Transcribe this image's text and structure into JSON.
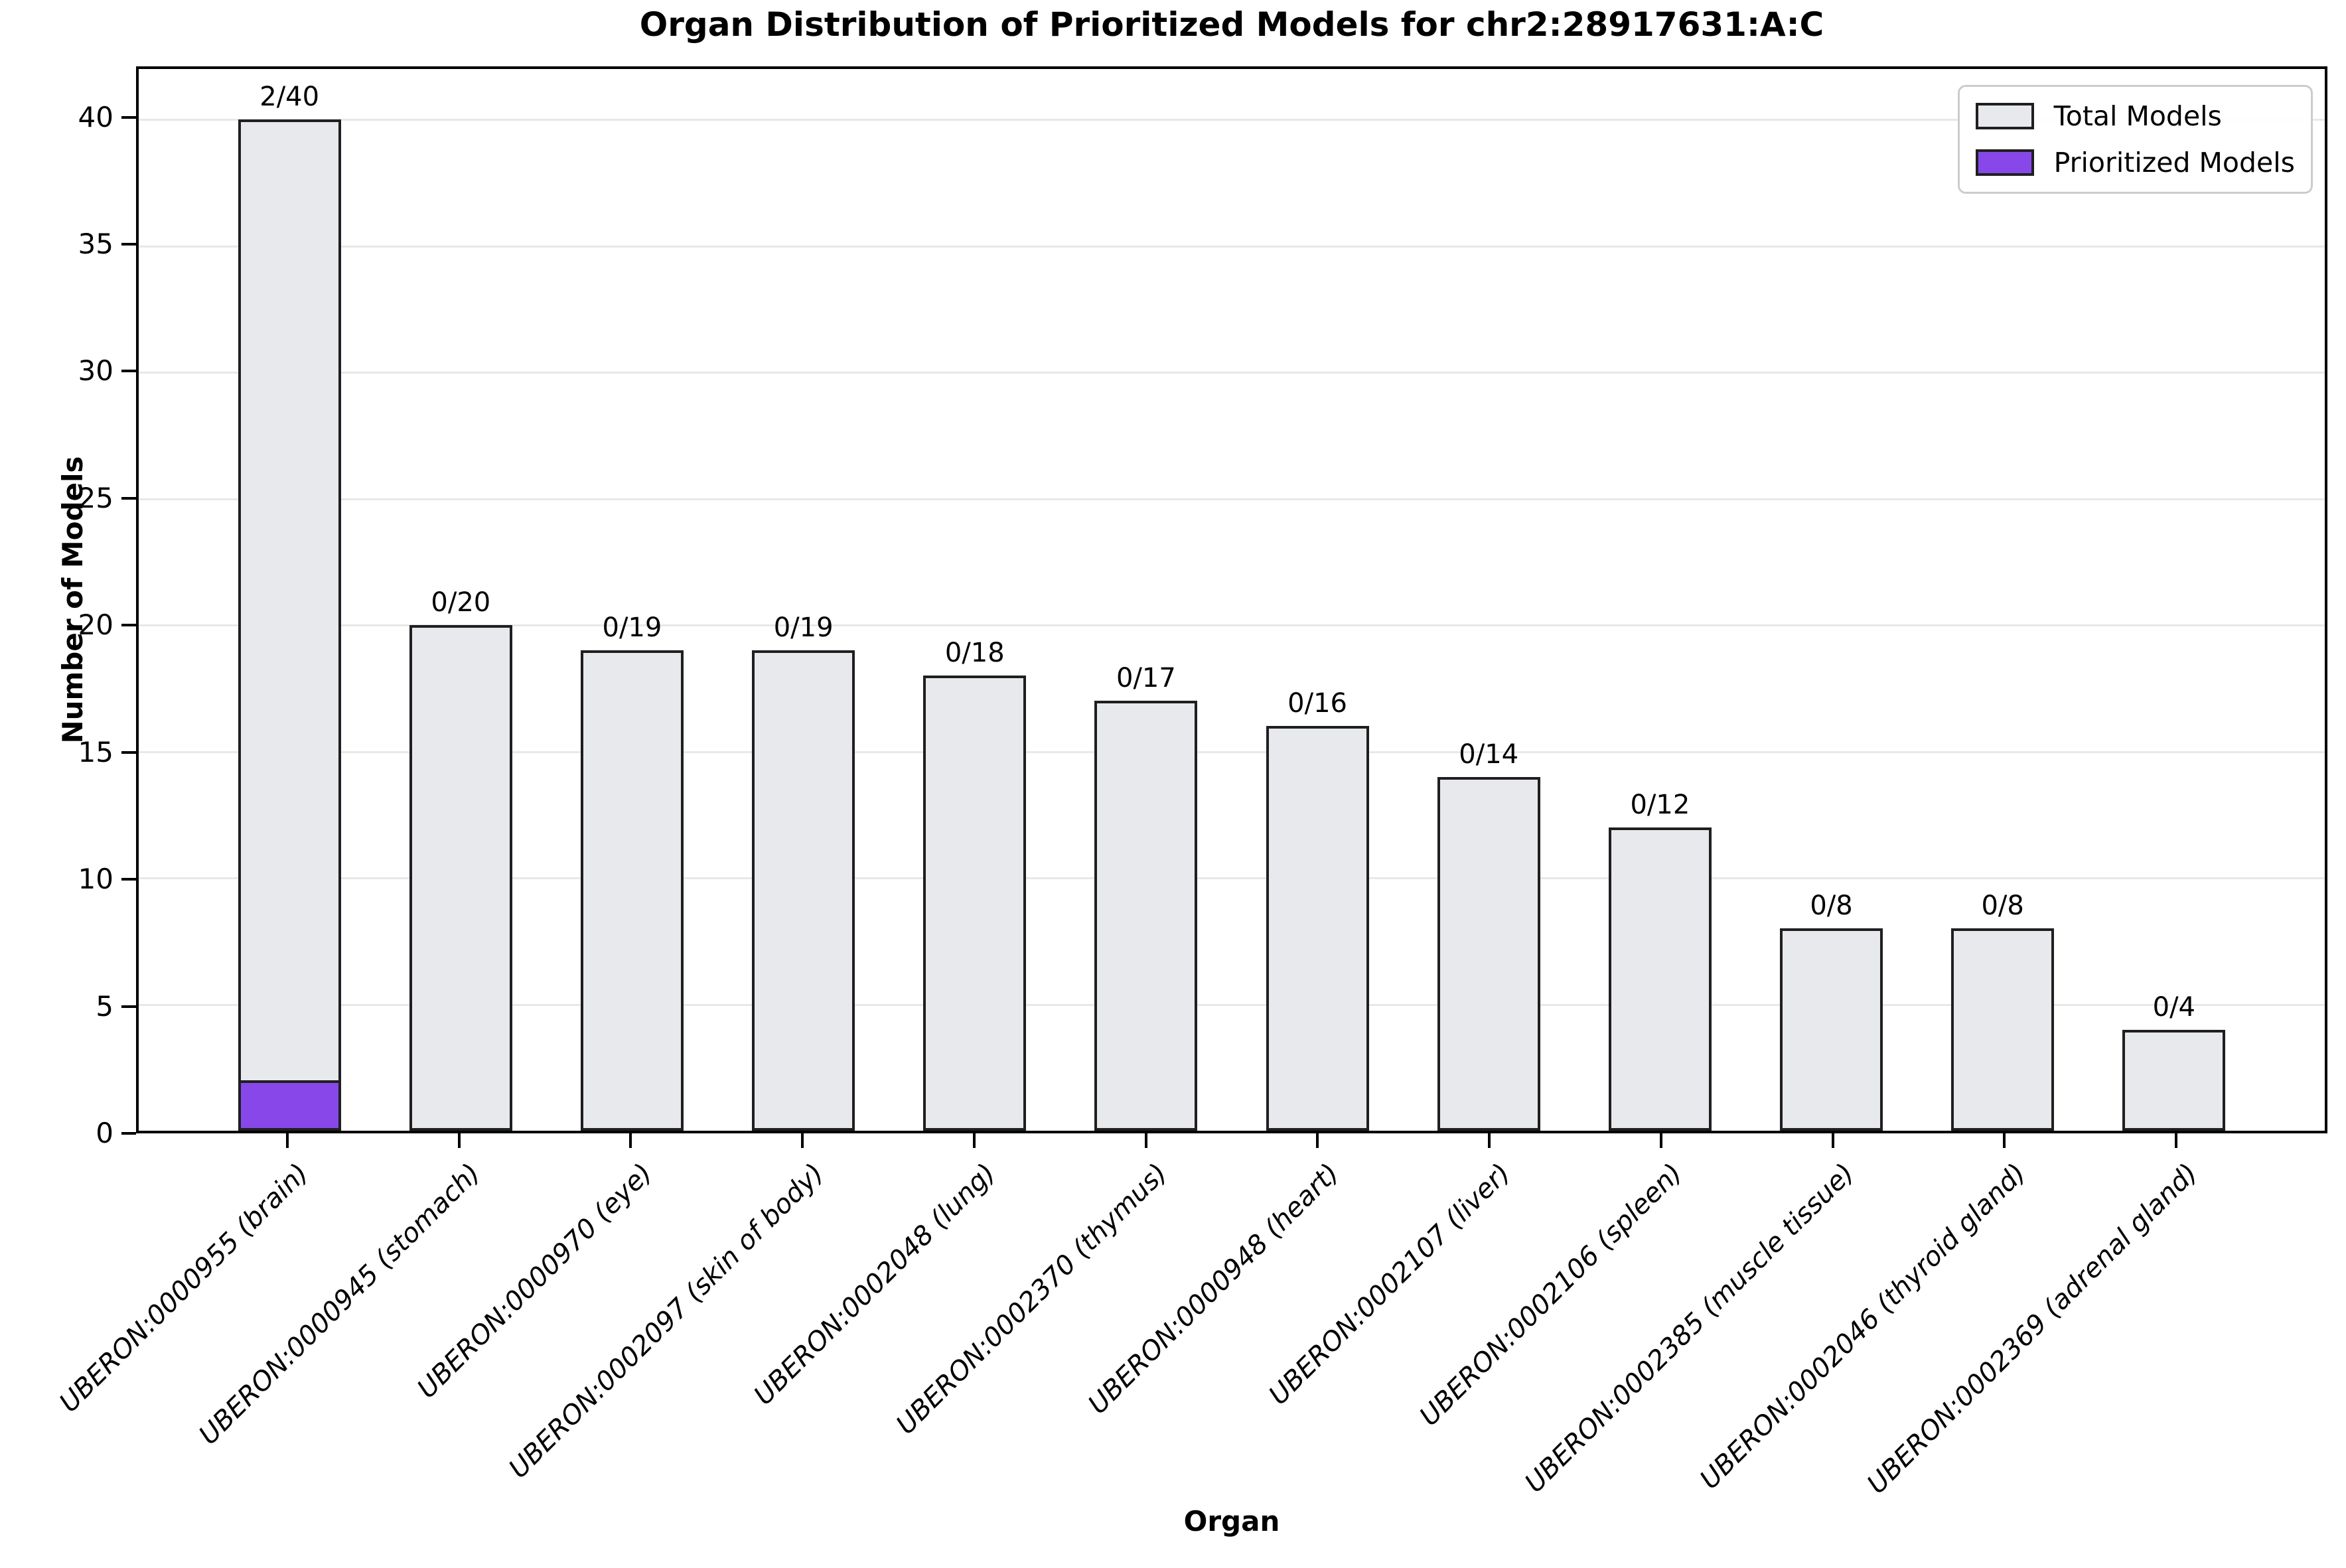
{
  "chart_data": {
    "type": "bar",
    "title": "Organ Distribution of Prioritized Models for chr2:28917631:A:C",
    "xlabel": "Organ",
    "ylabel": "Number of Models",
    "ylim": [
      0,
      42
    ],
    "yticks": [
      0,
      5,
      10,
      15,
      20,
      25,
      30,
      35,
      40
    ],
    "grid": "horizontal-light",
    "legend_position": "upper-right",
    "categories": [
      "UBERON:0000955 (brain)",
      "UBERON:0000945 (stomach)",
      "UBERON:0000970 (eye)",
      "UBERON:0002097 (skin of body)",
      "UBERON:0002048 (lung)",
      "UBERON:0002370 (thymus)",
      "UBERON:0000948 (heart)",
      "UBERON:0002107 (liver)",
      "UBERON:0002106 (spleen)",
      "UBERON:0002385 (muscle tissue)",
      "UBERON:0002046 (thyroid gland)",
      "UBERON:0002369 (adrenal gland)"
    ],
    "series": [
      {
        "name": "Total Models",
        "values": [
          40,
          20,
          19,
          19,
          18,
          17,
          16,
          14,
          12,
          8,
          8,
          4
        ],
        "color": "#E8E9ED"
      },
      {
        "name": "Prioritized Models",
        "values": [
          2,
          0,
          0,
          0,
          0,
          0,
          0,
          0,
          0,
          0,
          0,
          0
        ],
        "color": "#8847E8"
      }
    ],
    "bar_labels": [
      "2/40",
      "0/20",
      "0/19",
      "0/19",
      "0/18",
      "0/17",
      "0/16",
      "0/14",
      "0/12",
      "0/8",
      "0/8",
      "0/4"
    ],
    "colors": {
      "total_fill": "#E8E9ED",
      "prioritized_fill": "#8847E8",
      "bar_edge": "#1F1F1F",
      "grid": "#E8E8E8",
      "spine": "#000000",
      "legend_border": "#CCCCCC"
    }
  }
}
